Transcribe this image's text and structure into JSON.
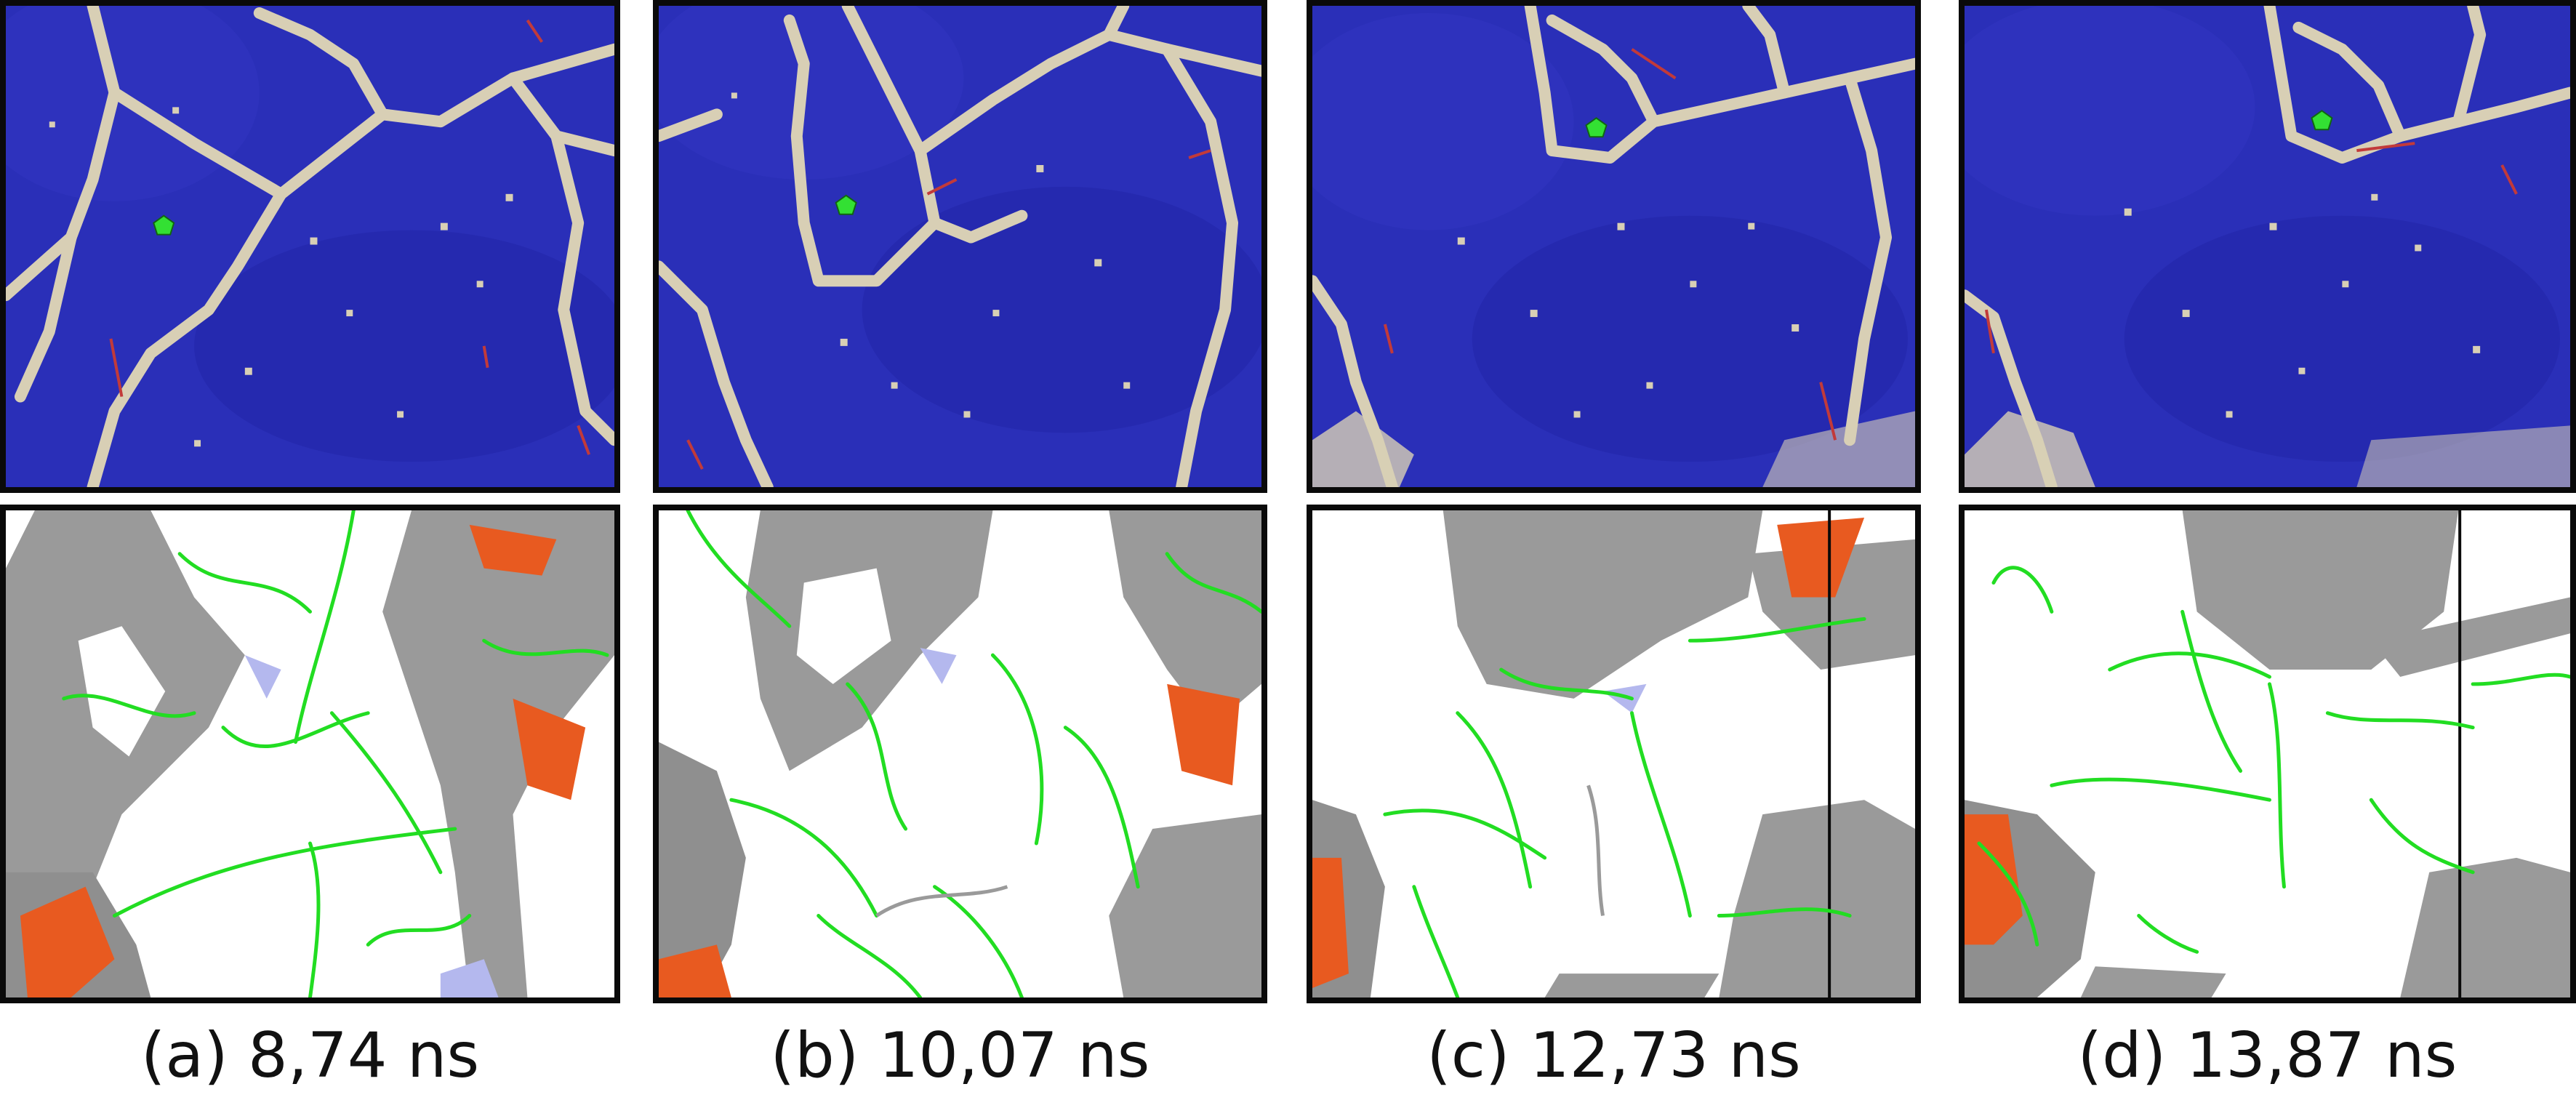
{
  "colors": {
    "matrix_blue": "#2a2fb8",
    "boundary_tan": "#d8cfb5",
    "defect_red": "#c23a3a",
    "marker_green": "#33e033",
    "dislocation_green": "#22dd22",
    "surface_gray": "#9a9a9a",
    "stacking_orange": "#e85a20",
    "lavender": "#b4b8ee",
    "frame": "#0a0a0a"
  },
  "panels": [
    {
      "id": "a",
      "caption": "(a) 8,74 ns"
    },
    {
      "id": "b",
      "caption": "(b) 10,07 ns"
    },
    {
      "id": "c",
      "caption": "(c) 12,73 ns"
    },
    {
      "id": "d",
      "caption": "(d) 13,87 ns"
    }
  ]
}
